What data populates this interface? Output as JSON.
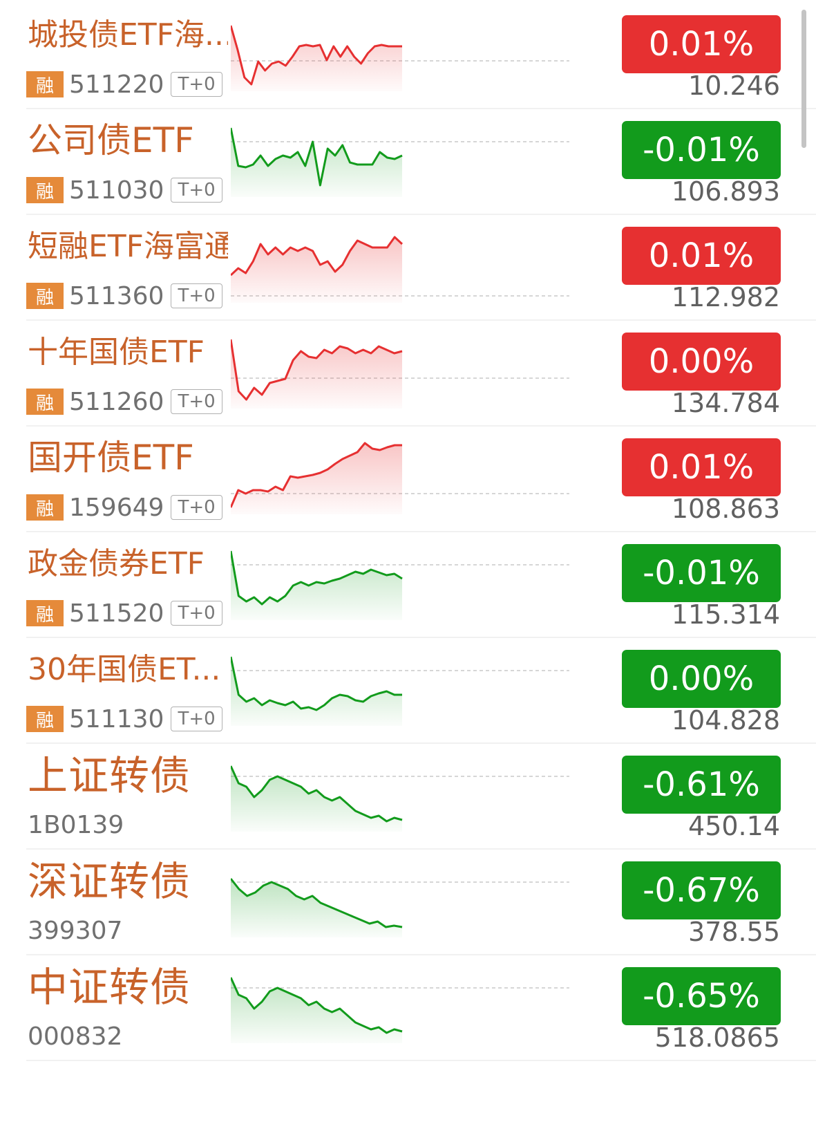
{
  "colors": {
    "up": "#e63031",
    "down": "#129b1c",
    "name": "#c8622a",
    "rong_badge": "#e58a3a"
  },
  "rows": [
    {
      "name": "城投债ETF海...",
      "rong": "融",
      "code": "511220",
      "tag": "T+0",
      "change": "0.01%",
      "price": "10.246",
      "dir": "up",
      "spark": [
        0.1,
        0.45,
        0.85,
        0.95,
        0.62,
        0.75,
        0.65,
        0.62,
        0.68,
        0.55,
        0.4,
        0.38,
        0.4,
        0.38,
        0.6,
        0.4,
        0.55,
        0.4,
        0.55,
        0.65,
        0.5,
        0.4,
        0.38,
        0.4,
        0.4,
        0.4
      ]
    },
    {
      "name": "公司债ETF",
      "rong": "融",
      "code": "511030",
      "tag": "T+0",
      "change": "-0.01%",
      "price": "106.893",
      "dir": "down",
      "spark": [
        0.05,
        0.6,
        0.62,
        0.58,
        0.45,
        0.6,
        0.5,
        0.45,
        0.48,
        0.4,
        0.6,
        0.25,
        0.88,
        0.35,
        0.45,
        0.3,
        0.55,
        0.58,
        0.58,
        0.58,
        0.4,
        0.48,
        0.5,
        0.45
      ]
    },
    {
      "name": "短融ETF海富通",
      "rong": "融",
      "code": "511360",
      "tag": "T+0",
      "change": "0.01%",
      "price": "112.982",
      "dir": "up",
      "spark": [
        0.65,
        0.55,
        0.62,
        0.45,
        0.2,
        0.35,
        0.25,
        0.35,
        0.25,
        0.3,
        0.25,
        0.3,
        0.5,
        0.45,
        0.6,
        0.5,
        0.3,
        0.15,
        0.2,
        0.25,
        0.25,
        0.25,
        0.1,
        0.2
      ]
    },
    {
      "name": "十年国债ETF",
      "rong": "融",
      "code": "511260",
      "tag": "T+0",
      "change": "0.00%",
      "price": "134.784",
      "dir": "up",
      "spark": [
        0.05,
        0.8,
        0.92,
        0.75,
        0.85,
        0.68,
        0.65,
        0.62,
        0.35,
        0.22,
        0.3,
        0.32,
        0.2,
        0.25,
        0.15,
        0.18,
        0.25,
        0.2,
        0.25,
        0.15,
        0.2,
        0.25,
        0.22
      ]
    },
    {
      "name": "国开债ETF",
      "rong": "融",
      "code": "159649",
      "tag": "T+0",
      "change": "0.01%",
      "price": "108.863",
      "dir": "up",
      "spark": [
        0.95,
        0.7,
        0.75,
        0.7,
        0.7,
        0.72,
        0.65,
        0.7,
        0.5,
        0.52,
        0.5,
        0.48,
        0.45,
        0.4,
        0.32,
        0.25,
        0.2,
        0.15,
        0.02,
        0.1,
        0.12,
        0.08,
        0.05,
        0.05
      ]
    },
    {
      "name": "政金债券ETF",
      "rong": "融",
      "code": "511520",
      "tag": "T+0",
      "change": "-0.01%",
      "price": "115.314",
      "dir": "down",
      "spark": [
        0.05,
        0.7,
        0.78,
        0.72,
        0.82,
        0.72,
        0.78,
        0.7,
        0.55,
        0.5,
        0.55,
        0.5,
        0.52,
        0.48,
        0.45,
        0.4,
        0.35,
        0.38,
        0.32,
        0.36,
        0.4,
        0.38,
        0.45
      ]
    },
    {
      "name": "30年国债ET...",
      "rong": "融",
      "code": "511130",
      "tag": "T+0",
      "change": "0.00%",
      "price": "104.828",
      "dir": "down",
      "spark": [
        0.05,
        0.6,
        0.7,
        0.65,
        0.75,
        0.68,
        0.72,
        0.75,
        0.7,
        0.8,
        0.78,
        0.82,
        0.75,
        0.65,
        0.6,
        0.62,
        0.68,
        0.7,
        0.62,
        0.58,
        0.55,
        0.6,
        0.6
      ]
    },
    {
      "name": "上证转债",
      "rong": "",
      "code": "1B0139",
      "tag": "",
      "change": "-0.61%",
      "price": "450.14",
      "dir": "down",
      "spark": [
        0.1,
        0.35,
        0.4,
        0.55,
        0.45,
        0.3,
        0.25,
        0.3,
        0.35,
        0.4,
        0.5,
        0.45,
        0.55,
        0.6,
        0.55,
        0.65,
        0.75,
        0.8,
        0.85,
        0.82,
        0.9,
        0.85,
        0.88
      ]
    },
    {
      "name": "深证转债",
      "rong": "",
      "code": "399307",
      "tag": "",
      "change": "-0.67%",
      "price": "378.55",
      "dir": "down",
      "spark": [
        0.2,
        0.35,
        0.45,
        0.4,
        0.3,
        0.25,
        0.3,
        0.35,
        0.45,
        0.5,
        0.45,
        0.55,
        0.6,
        0.65,
        0.7,
        0.75,
        0.8,
        0.85,
        0.82,
        0.9,
        0.88,
        0.9
      ]
    },
    {
      "name": "中证转债",
      "rong": "",
      "code": "000832",
      "tag": "",
      "change": "-0.65%",
      "price": "518.0865",
      "dir": "down",
      "spark": [
        0.1,
        0.35,
        0.4,
        0.55,
        0.45,
        0.3,
        0.25,
        0.3,
        0.35,
        0.4,
        0.5,
        0.45,
        0.55,
        0.6,
        0.55,
        0.65,
        0.75,
        0.8,
        0.85,
        0.82,
        0.9,
        0.85,
        0.88
      ]
    }
  ]
}
